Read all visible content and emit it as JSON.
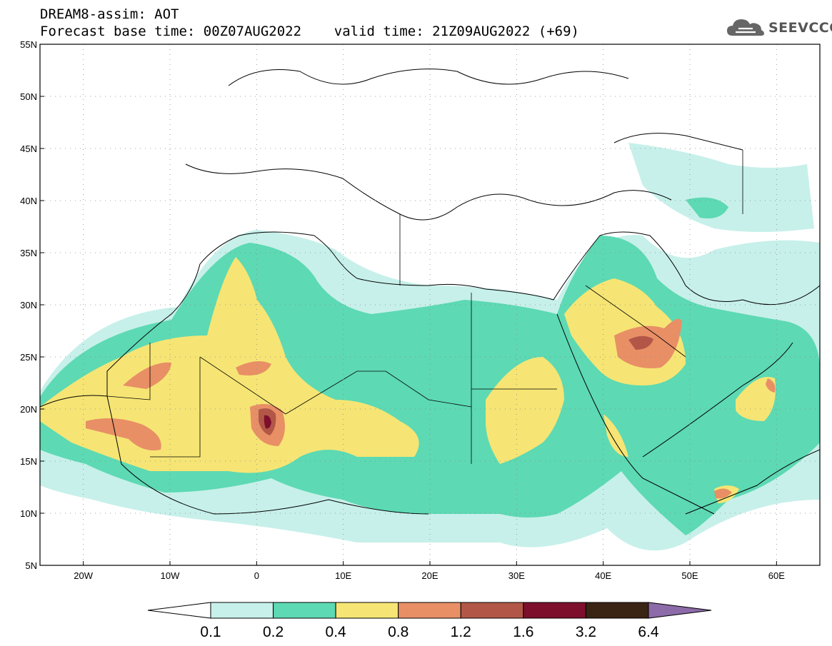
{
  "header": {
    "title_line1": "DREAM8-assim: AOT",
    "title_line2": "Forecast base time: 00Z07AUG2022    valid time: 21Z09AUG2022 (+69)"
  },
  "logo": {
    "text": "SEEVCCC",
    "icon": "cloud-icon"
  },
  "map": {
    "projection": "lat-lon",
    "lon_range": [
      -25,
      65
    ],
    "lat_range": [
      5,
      55
    ],
    "lat_ticks": [
      {
        "value": 55,
        "label": "55N"
      },
      {
        "value": 50,
        "label": "50N"
      },
      {
        "value": 45,
        "label": "45N"
      },
      {
        "value": 40,
        "label": "40N"
      },
      {
        "value": 35,
        "label": "35N"
      },
      {
        "value": 30,
        "label": "30N"
      },
      {
        "value": 25,
        "label": "25N"
      },
      {
        "value": 20,
        "label": "20N"
      },
      {
        "value": 15,
        "label": "15N"
      },
      {
        "value": 10,
        "label": "10N"
      },
      {
        "value": 5,
        "label": "5N"
      }
    ],
    "lon_ticks": [
      {
        "value": -20,
        "label": "20W"
      },
      {
        "value": -10,
        "label": "10W"
      },
      {
        "value": 0,
        "label": "0"
      },
      {
        "value": 10,
        "label": "10E"
      },
      {
        "value": 20,
        "label": "20E"
      },
      {
        "value": 30,
        "label": "30E"
      },
      {
        "value": 40,
        "label": "40E"
      },
      {
        "value": 50,
        "label": "50E"
      },
      {
        "value": 60,
        "label": "60E"
      }
    ],
    "grid": "dotted"
  },
  "colorbar": {
    "labels": [
      "0.1",
      "0.2",
      "0.4",
      "0.8",
      "1.2",
      "1.6",
      "3.2",
      "6.4"
    ],
    "under_color": "#ffffff",
    "over_color": "#8c6ba8",
    "colors": [
      "#c7f0ea",
      "#5dd9b3",
      "#f6e574",
      "#e88f66",
      "#b25747",
      "#7d0f2c",
      "#3a2414"
    ]
  }
}
